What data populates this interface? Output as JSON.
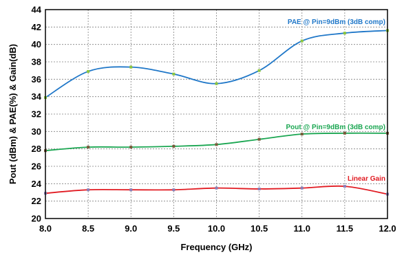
{
  "chart_data": {
    "type": "line",
    "title": "",
    "xlabel": "Frequency (GHz)",
    "ylabel": "Pout (dBm) & PAE(%) & Gain(dB)",
    "xlim": [
      8.0,
      12.0
    ],
    "ylim": [
      20,
      44
    ],
    "x_ticks": [
      "8.0",
      "8.5",
      "9.0",
      "9.5",
      "10.0",
      "10.5",
      "11.0",
      "11.5",
      "12.0"
    ],
    "y_ticks": [
      "20",
      "22",
      "24",
      "26",
      "28",
      "30",
      "32",
      "34",
      "36",
      "38",
      "40",
      "42",
      "44"
    ],
    "grid": true,
    "x": [
      8.0,
      8.5,
      9.0,
      9.5,
      10.0,
      10.5,
      11.0,
      11.5,
      12.0
    ],
    "series": [
      {
        "name": "PAE @ Pin=9dBm (3dB comp)",
        "color": "#1f77c8",
        "marker_color": "#8cc63f",
        "values": [
          33.9,
          36.9,
          37.4,
          36.6,
          35.5,
          37.0,
          40.4,
          41.3,
          41.6
        ]
      },
      {
        "name": "Pout @ Pin=9dBm (3dB comp)",
        "color": "#1aa651",
        "marker_color": "#7a5a3a",
        "values": [
          27.8,
          28.2,
          28.2,
          28.3,
          28.5,
          29.1,
          29.7,
          29.8,
          29.8
        ]
      },
      {
        "name": "Linear Gain",
        "color": "#e11b22",
        "marker_color": "#8a7fb8",
        "values": [
          22.9,
          23.3,
          23.3,
          23.3,
          23.5,
          23.4,
          23.5,
          23.7,
          22.8
        ]
      }
    ]
  }
}
